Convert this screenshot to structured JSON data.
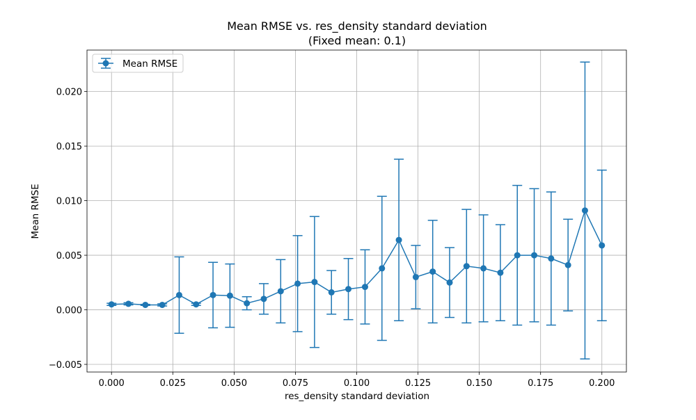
{
  "chart_data": {
    "type": "line",
    "title": "Mean RMSE vs. res_density standard deviation",
    "subtitle": "(Fixed mean: 0.1)",
    "xlabel": "res_density standard deviation",
    "ylabel": "Mean RMSE",
    "xlim": [
      -0.01,
      0.21
    ],
    "ylim": [
      -0.0057,
      0.0238
    ],
    "x_ticks": [
      0.0,
      0.025,
      0.05,
      0.075,
      0.1,
      0.125,
      0.15,
      0.175,
      0.2
    ],
    "x_tick_labels": [
      "0.000",
      "0.025",
      "0.050",
      "0.075",
      "0.100",
      "0.125",
      "0.150",
      "0.175",
      "0.200"
    ],
    "y_ticks": [
      -0.005,
      0.0,
      0.005,
      0.01,
      0.015,
      0.02
    ],
    "y_tick_labels": [
      "−0.005",
      "0.000",
      "0.005",
      "0.010",
      "0.015",
      "0.020"
    ],
    "grid": true,
    "legend_position": "top-left",
    "series": [
      {
        "name": "Mean RMSE",
        "color": "#1f77b4",
        "marker": "circle",
        "error_bars": true,
        "x": [
          0.0,
          0.0069,
          0.0138,
          0.0207,
          0.0276,
          0.0345,
          0.0414,
          0.0483,
          0.0552,
          0.0621,
          0.069,
          0.0759,
          0.0828,
          0.0897,
          0.0966,
          0.1034,
          0.1103,
          0.1172,
          0.1241,
          0.131,
          0.1379,
          0.1448,
          0.1517,
          0.1586,
          0.1655,
          0.1724,
          0.1793,
          0.1862,
          0.1931,
          0.2
        ],
        "y": [
          0.0005,
          0.00055,
          0.00045,
          0.00045,
          0.00135,
          0.0005,
          0.00135,
          0.0013,
          0.0006,
          0.001,
          0.0017,
          0.0024,
          0.00255,
          0.0016,
          0.0019,
          0.0021,
          0.0038,
          0.0064,
          0.003,
          0.0035,
          0.0025,
          0.004,
          0.0038,
          0.0034,
          0.005,
          0.005,
          0.0047,
          0.0041,
          0.0091,
          0.0059
        ],
        "err": [
          0.0001,
          0.0001,
          5e-05,
          0.0001,
          0.0035,
          0.0001,
          0.003,
          0.0029,
          0.0006,
          0.0014,
          0.0029,
          0.0044,
          0.006,
          0.002,
          0.0028,
          0.0034,
          0.0066,
          0.0074,
          0.0029,
          0.0047,
          0.0032,
          0.0052,
          0.0049,
          0.0044,
          0.0064,
          0.0061,
          0.0061,
          0.0042,
          0.0136,
          0.0069
        ]
      }
    ]
  }
}
